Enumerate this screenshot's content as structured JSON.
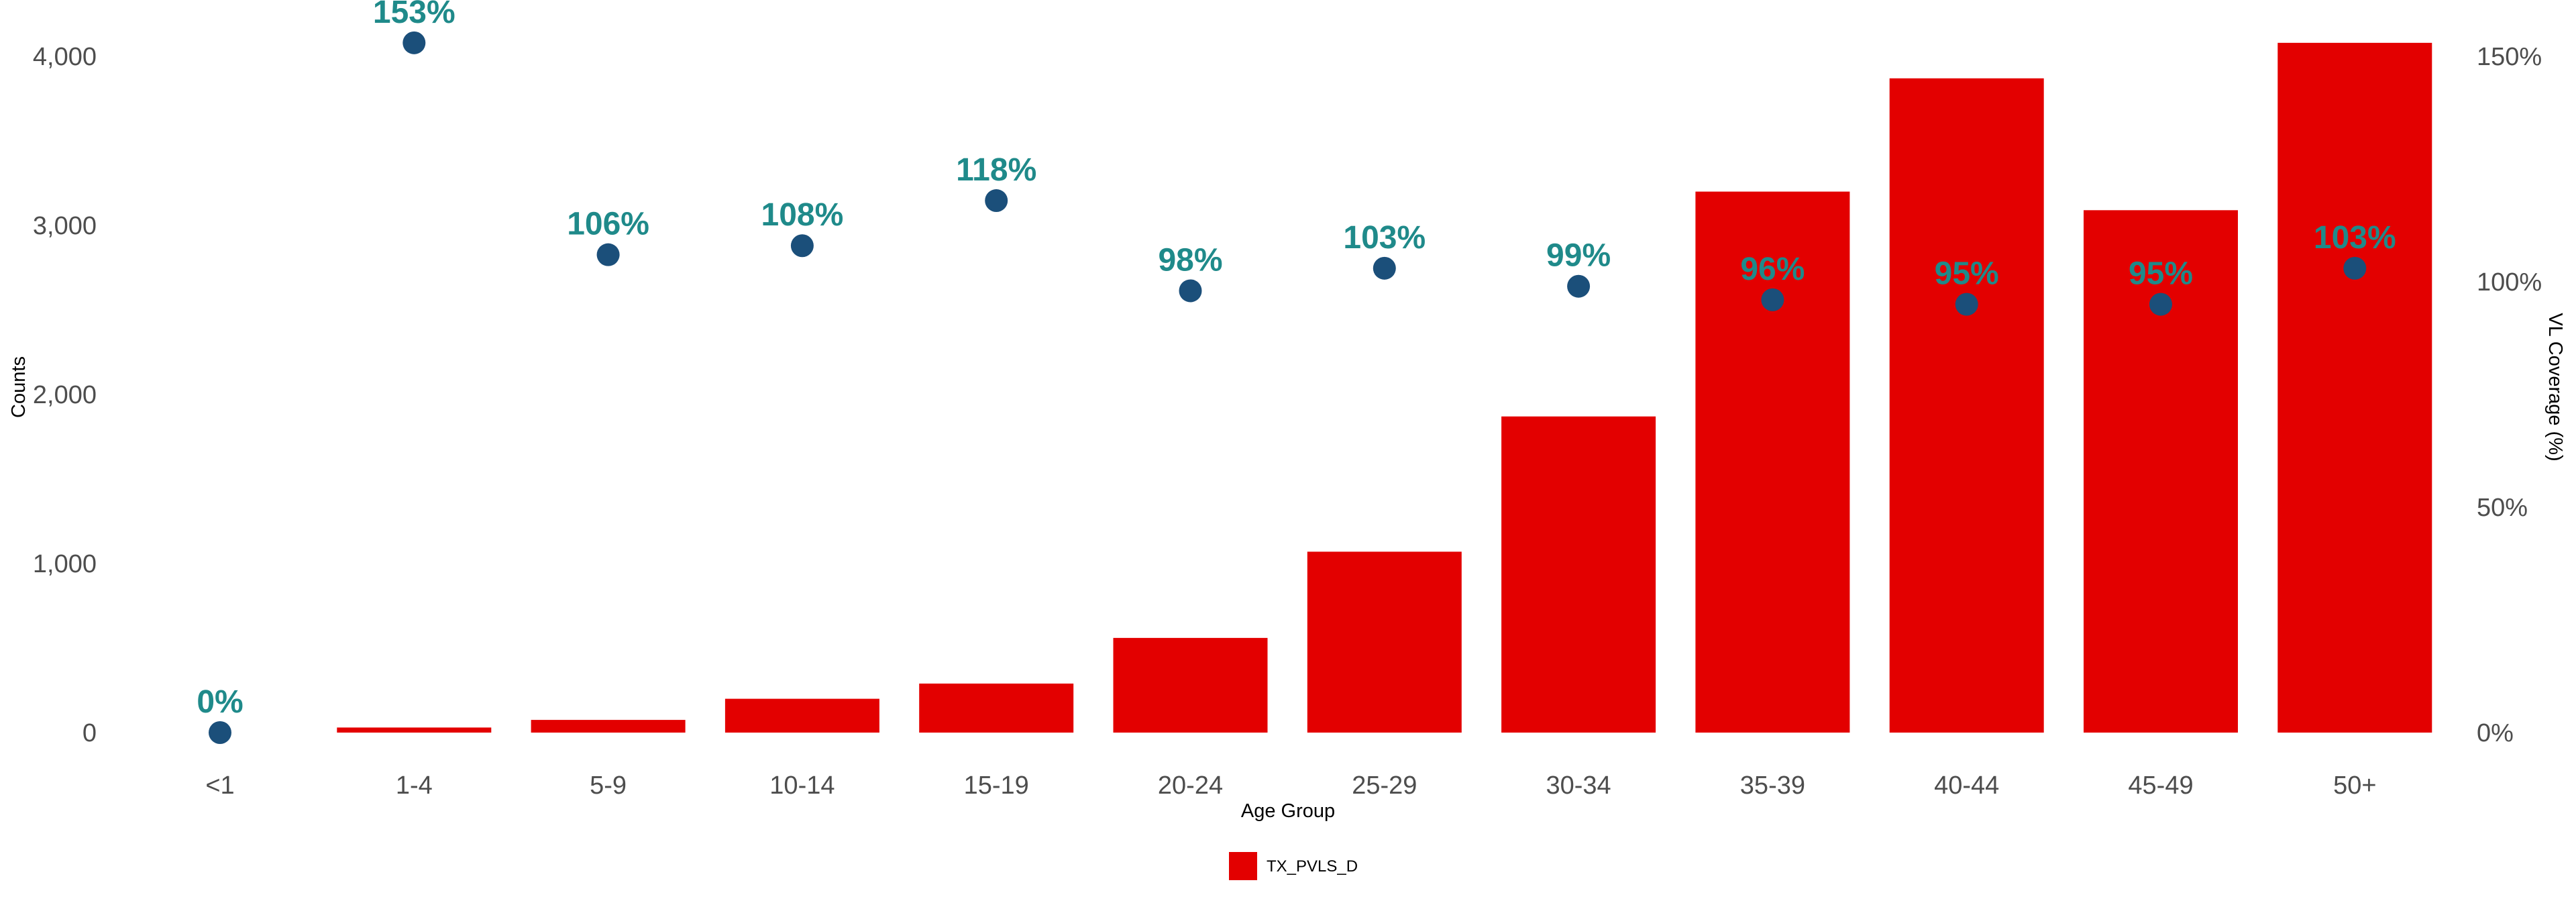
{
  "chart_data": {
    "type": "bar",
    "categories": [
      "<1",
      "1-4",
      "5-9",
      "10-14",
      "15-19",
      "20-24",
      "25-29",
      "30-34",
      "35-39",
      "40-44",
      "45-49",
      "50+"
    ],
    "series": [
      {
        "name": "TX_PVLS_D",
        "kind": "bar",
        "axis": "left",
        "values": [
          0,
          30,
          75,
          200,
          290,
          560,
          1070,
          1870,
          3200,
          3870,
          3090,
          4080
        ]
      },
      {
        "kind": "point",
        "axis": "right",
        "values": [
          0,
          153,
          106,
          108,
          118,
          98,
          103,
          99,
          96,
          95,
          95,
          103
        ],
        "labels": [
          "0%",
          "153%",
          "106%",
          "108%",
          "118%",
          "98%",
          "103%",
          "99%",
          "96%",
          "95%",
          "95%",
          "103%"
        ]
      }
    ],
    "xlabel": "Age Group",
    "ylabel": "Counts",
    "y2label": "VL Coverage (%)",
    "ylim": [
      0,
      4000
    ],
    "y2lim": [
      0,
      150
    ],
    "yticks": [
      0,
      1000,
      2000,
      3000,
      4000
    ],
    "ytick_labels": [
      "0",
      "1,000",
      "2,000",
      "3,000",
      "4,000"
    ],
    "y2ticks": [
      0,
      50,
      100,
      150
    ],
    "y2tick_labels": [
      "0%",
      "50%",
      "100%",
      "150%"
    ],
    "grid": false,
    "legend": {
      "position": "bottom",
      "entries": [
        "TX_PVLS_D"
      ]
    },
    "colors": {
      "bar": "#e30000",
      "point": "#1b4f7a",
      "label": "#1f8a8a"
    }
  }
}
